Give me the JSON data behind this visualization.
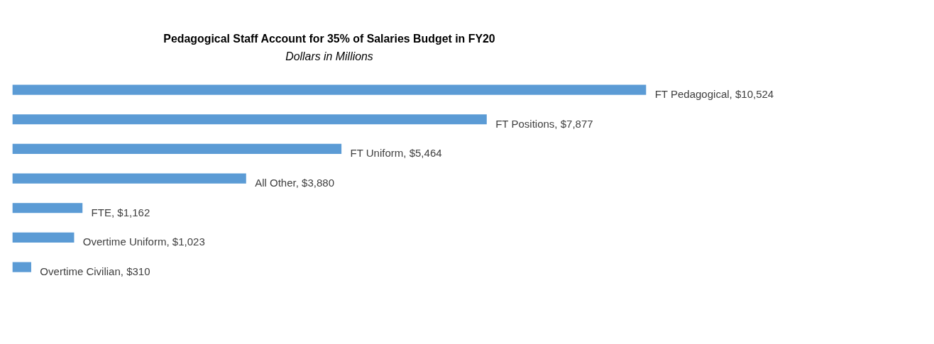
{
  "chart_data": {
    "type": "bar",
    "orientation": "horizontal",
    "title": "Pedagogical Staff Account for 35% of Salaries Budget in FY20",
    "subtitle": "Dollars in Millions",
    "categories": [
      null,
      null,
      null,
      null,
      null,
      null,
      null
    ],
    "values": [
      10524,
      7877,
      5464,
      3880,
      1162,
      1023,
      310
    ],
    "value_labels": [
      "FT Pedagogical,  $10,524",
      "FT Positions,  $7,877",
      "FT Uniform,  $5,464",
      "All Other,  $3,880",
      "FTE,  $1,162",
      "Overtime Uniform,  $1,023",
      "Overtime Civilian,  $310"
    ],
    "color": "#5b9bd5",
    "tick_labels": false
  }
}
